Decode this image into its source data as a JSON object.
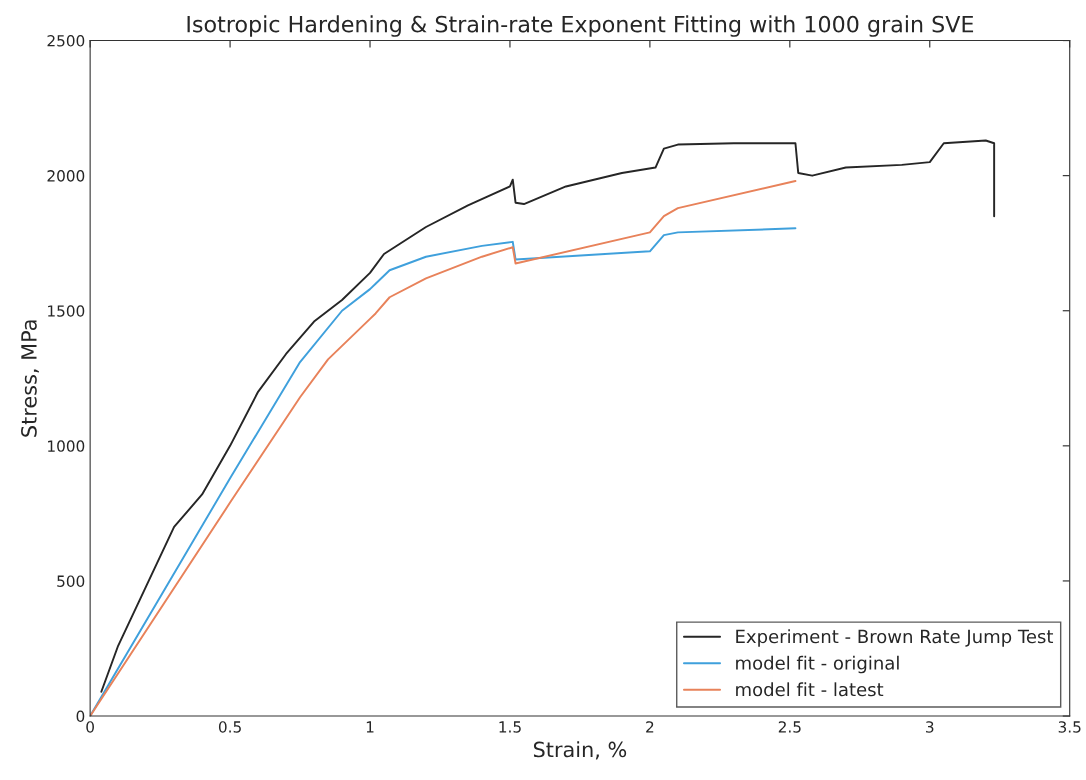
{
  "chart_data": {
    "type": "line",
    "title": "Isotropic Hardening & Strain-rate Exponent Fitting with 1000 grain SVE",
    "xlabel": "Strain, %",
    "ylabel": "Stress, MPa",
    "xlim": [
      0,
      3.5
    ],
    "xticks": [
      0,
      0.5,
      1,
      1.5,
      2,
      2.5,
      3,
      3.5
    ],
    "ylim": [
      0,
      2500
    ],
    "yticks": [
      0,
      500,
      1000,
      1500,
      2000,
      2500
    ],
    "grid": false,
    "legend": "bottom right",
    "marker": "none",
    "line_style": "solid",
    "series": [
      {
        "name": "Experiment - Brown Rate Jump Test",
        "color": "#262626",
        "x": [
          0.04,
          0.1,
          0.2,
          0.3,
          0.4,
          0.5,
          0.6,
          0.7,
          0.8,
          0.9,
          1.0,
          1.05,
          1.2,
          1.35,
          1.5,
          1.51,
          1.52,
          1.55,
          1.7,
          1.9,
          2.02,
          2.05,
          2.1,
          2.3,
          2.52,
          2.53,
          2.58,
          2.7,
          2.9,
          3.0,
          3.05,
          3.2,
          3.23,
          3.23
        ],
        "values": [
          90,
          260,
          480,
          700,
          820,
          1000,
          1200,
          1340,
          1460,
          1540,
          1640,
          1710,
          1810,
          1890,
          1960,
          1985,
          1900,
          1895,
          1960,
          2010,
          2030,
          2100,
          2115,
          2120,
          2120,
          2010,
          2000,
          2030,
          2040,
          2050,
          2120,
          2130,
          2120,
          1850
        ]
      },
      {
        "name": "model fit - original",
        "color": "#3fa0dc",
        "x": [
          0,
          0.5,
          0.75,
          0.9,
          1.0,
          1.02,
          1.07,
          1.2,
          1.4,
          1.51,
          1.52,
          2.0,
          2.05,
          2.1,
          2.52
        ],
        "values": [
          0,
          880,
          1310,
          1500,
          1580,
          1600,
          1650,
          1700,
          1740,
          1755,
          1690,
          1720,
          1780,
          1790,
          1805
        ]
      },
      {
        "name": "model fit - latest",
        "color": "#e8825a",
        "x": [
          0,
          0.5,
          0.75,
          0.85,
          1.0,
          1.02,
          1.07,
          1.2,
          1.4,
          1.51,
          1.52,
          2.0,
          2.05,
          2.1,
          2.52
        ],
        "values": [
          0,
          790,
          1180,
          1320,
          1470,
          1490,
          1550,
          1620,
          1700,
          1735,
          1675,
          1790,
          1850,
          1880,
          1980
        ]
      }
    ]
  }
}
